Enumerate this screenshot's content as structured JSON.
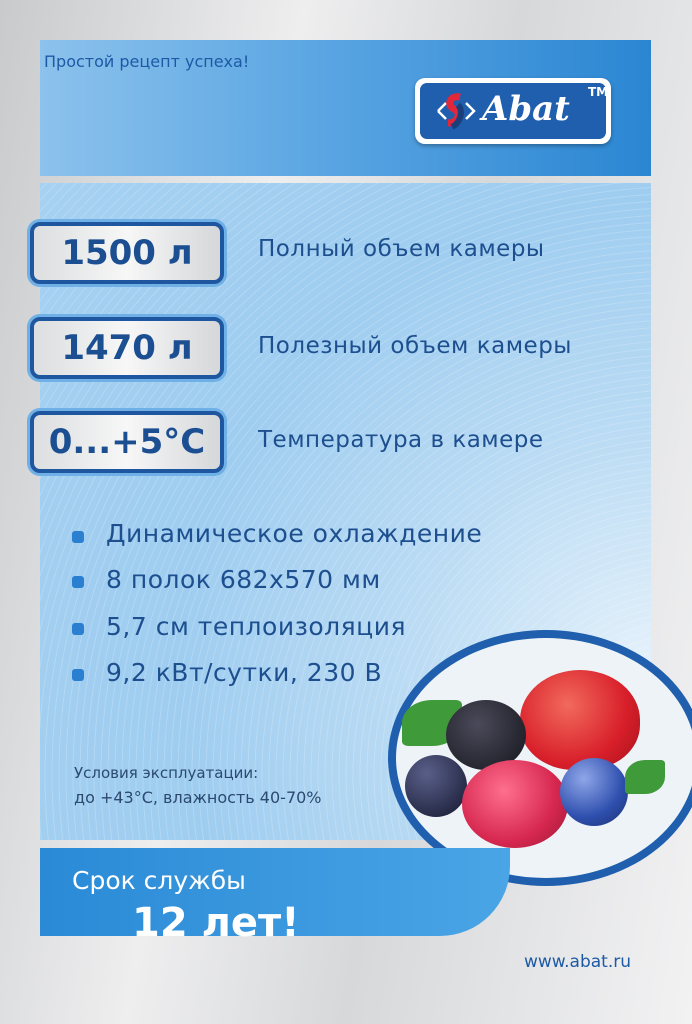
{
  "header": {
    "slogan": "Простой рецепт успеха!",
    "logo": {
      "text": "Abat",
      "tm": "TM"
    }
  },
  "specs": [
    {
      "value": "1500 л",
      "label": "Полный объем камеры"
    },
    {
      "value": "1470 л",
      "label": "Полезный объем камеры"
    },
    {
      "value": "0...+5°С",
      "label": "Температура в камере"
    }
  ],
  "features": [
    "Динамическое охлаждение",
    "8 полок 682х570 мм",
    "5,7 см теплоизоляция",
    "9,2 кВт/сутки, 230 В"
  ],
  "conditions": {
    "title": "Условия эксплуатации:",
    "value": "до +43°С, влажность 40-70%"
  },
  "banner": {
    "line1": "Срок службы",
    "line2": "12 лет!"
  },
  "footer": {
    "website": "www.abat.ru"
  },
  "colors": {
    "brand": "#1f5fae",
    "accent": "#2a8ad6"
  }
}
